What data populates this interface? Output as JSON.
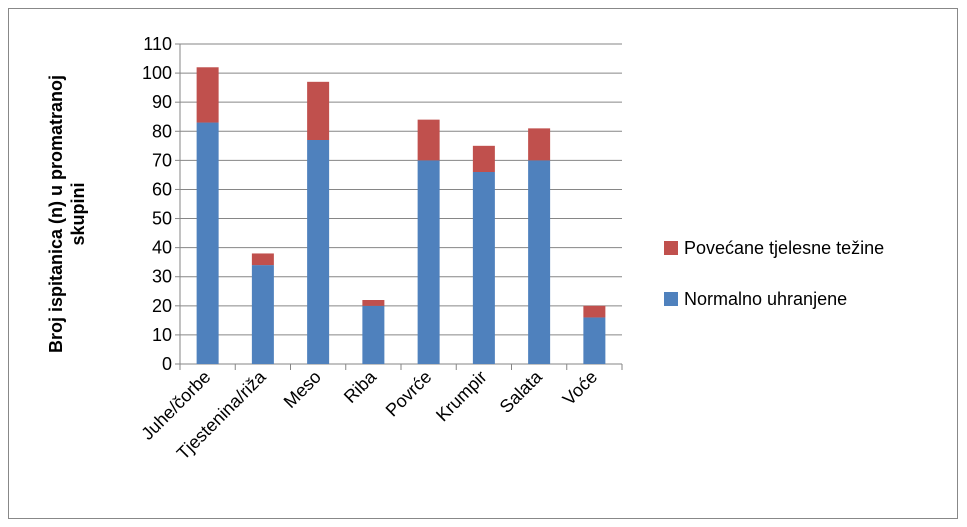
{
  "chart_data": {
    "type": "bar",
    "stacked": true,
    "ylabel": "Broj ispitanica (n) u promatranoj skupini",
    "ylim": [
      0,
      110
    ],
    "yticks": [
      0,
      10,
      20,
      30,
      40,
      50,
      60,
      70,
      80,
      90,
      100,
      110
    ],
    "grid": true,
    "legend_position": "right",
    "categories": [
      "Juhe/čorbe",
      "Tjestenina/riža",
      "Meso",
      "Riba",
      "Povrće",
      "Krumpir",
      "Salata",
      "Voće"
    ],
    "series": [
      {
        "name": "Normalno uhranjene",
        "color": "#4f81bd",
        "values": [
          83,
          34,
          77,
          20,
          70,
          66,
          70,
          16
        ]
      },
      {
        "name": "Povećane tjelesne težine",
        "color": "#c0504d",
        "values": [
          19,
          4,
          20,
          2,
          14,
          9,
          11,
          4
        ]
      }
    ]
  },
  "legend": {
    "items": [
      {
        "label": "Povećane tjelesne težine",
        "color": "#c0504d"
      },
      {
        "label": "Normalno uhranjene",
        "color": "#4f81bd"
      }
    ]
  }
}
